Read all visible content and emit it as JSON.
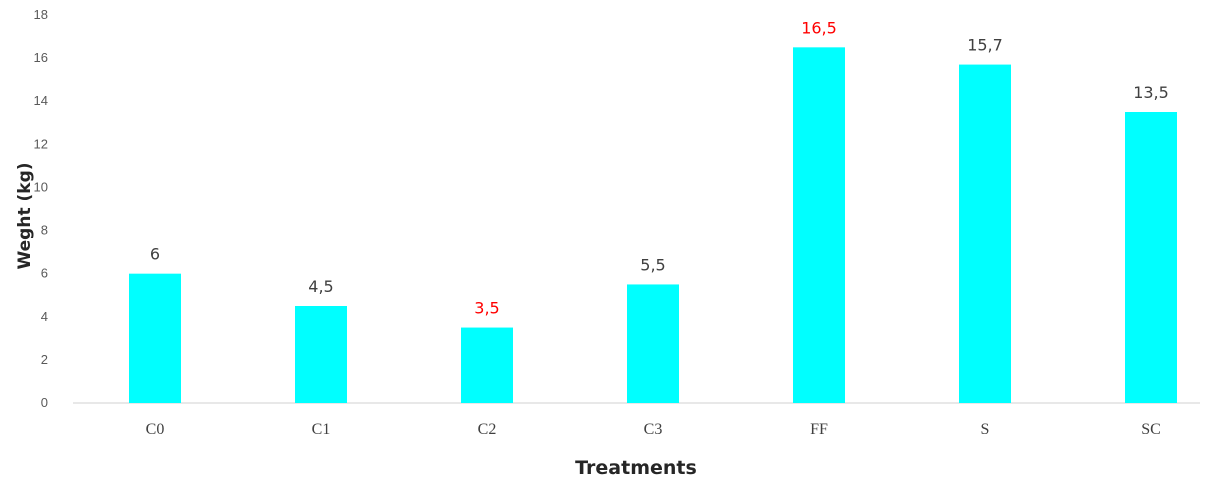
{
  "chart_data": {
    "type": "bar",
    "categories": [
      "C0",
      "C1",
      "C2",
      "C3",
      "FF",
      "S",
      "SC"
    ],
    "values": [
      6,
      4.5,
      3.5,
      5.5,
      16.5,
      15.7,
      13.5
    ],
    "data_labels": [
      "6",
      "4,5",
      "3,5",
      "5,5",
      "16,5",
      "15,7",
      "13,5"
    ],
    "label_colors": [
      "#404040",
      "#404040",
      "#ff0000",
      "#404040",
      "#ff0000",
      "#404040",
      "#404040"
    ],
    "bar_color": "#00ffff",
    "xlabel": "Treatments",
    "ylabel": "Weght (kg)",
    "ylim": [
      0,
      18
    ],
    "yticks": [
      0,
      2,
      4,
      6,
      8,
      10,
      12,
      14,
      16,
      18
    ],
    "grid": false,
    "legend": "none"
  }
}
